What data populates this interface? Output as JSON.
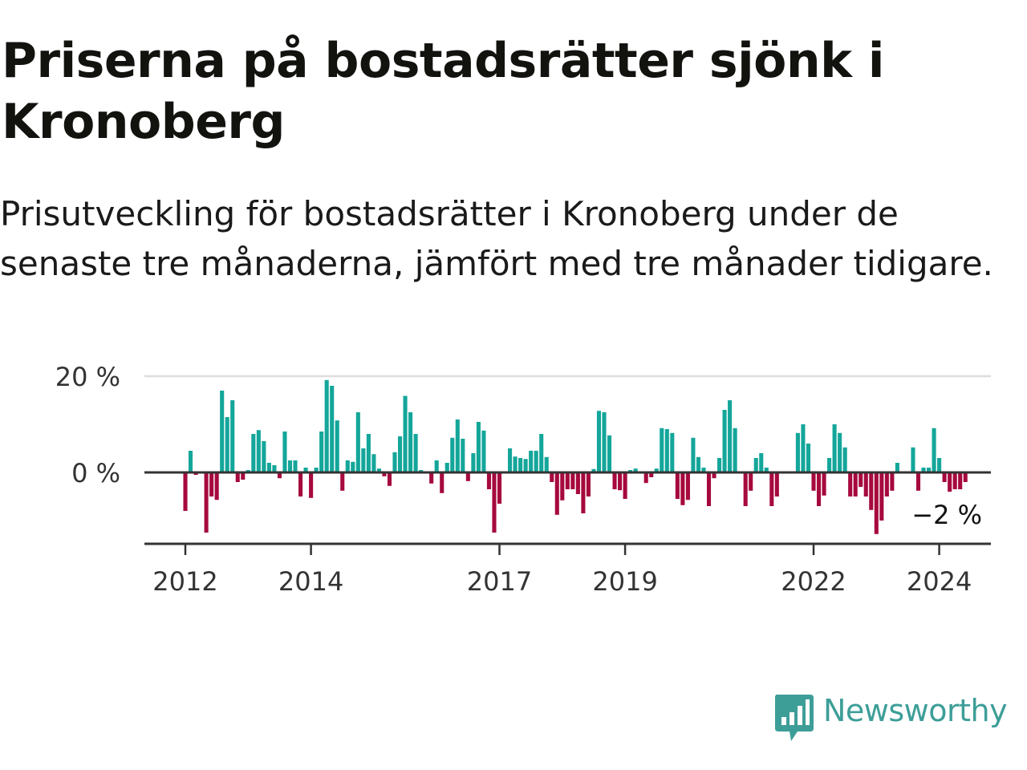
{
  "title": "Priserna på bostadsrätter sjönk i Kronoberg",
  "subtitle": "Prisutveckling för bostadsrätter i Kronoberg under de senaste tre månaderna, jämfört med tre månader tidigare.",
  "brand": {
    "name": "Newsworthy",
    "color": "#3d9e98",
    "icon": "newsworthy-logo-icon"
  },
  "chart_data": {
    "type": "bar",
    "title": "Priserna på bostadsrätter sjönk i Kronoberg",
    "subtitle": "Prisutveckling för bostadsrätter i Kronoberg under de senaste tre månaderna, jämfört med tre månader tidigare.",
    "unit": "%",
    "start": "2012-01",
    "frequency": "monthly",
    "ylim": [
      -15,
      20
    ],
    "yticks": [
      {
        "value": 0,
        "label": "0 %"
      },
      {
        "value": 20,
        "label": "20 %"
      }
    ],
    "xticks": [
      {
        "year": 2012,
        "label": "2012"
      },
      {
        "year": 2014,
        "label": "2014"
      },
      {
        "year": 2017,
        "label": "2017"
      },
      {
        "year": 2019,
        "label": "2019"
      },
      {
        "year": 2022,
        "label": "2022"
      },
      {
        "year": 2024,
        "label": "2024"
      }
    ],
    "colors": {
      "positive": "#14a69a",
      "negative": "#a6093d",
      "grid": "#dddddd",
      "axis": "#333333"
    },
    "grid": true,
    "annotation": {
      "label": "−2 %",
      "value": -2
    },
    "values": [
      -8,
      4.5,
      -0.5,
      0,
      -12.5,
      -5,
      -5.7,
      17,
      11.5,
      15,
      -2,
      -1.5,
      0.5,
      8,
      8.8,
      6.5,
      2,
      1.5,
      -1.2,
      8.5,
      2.5,
      2.5,
      -5,
      1,
      -5.3,
      1,
      8.5,
      19.2,
      18,
      10.8,
      -3.8,
      2.5,
      2.2,
      12.5,
      5,
      8,
      3.8,
      0.8,
      -0.8,
      -2.8,
      4.2,
      7.5,
      15.9,
      12.5,
      8,
      0.5,
      0,
      -2.3,
      2.5,
      -4.3,
      2,
      7.2,
      11,
      7,
      -1.8,
      4,
      10.5,
      8.7,
      -3.5,
      -12.5,
      -6.5,
      0,
      5,
      3.3,
      3,
      2.8,
      4.5,
      4.5,
      8,
      3.2,
      -2,
      -8.8,
      -5.8,
      -3.5,
      -3.5,
      -4.5,
      -8.5,
      -5,
      0.7,
      12.8,
      12.5,
      7.7,
      -3.5,
      -3.7,
      -5.5,
      0.5,
      0.8,
      0,
      -2.2,
      -1,
      0.8,
      9.2,
      9,
      8.2,
      -5.5,
      -6.8,
      -5.7,
      7.2,
      3.2,
      1,
      -7,
      -1.2,
      3,
      13,
      15,
      9.2,
      0,
      -7,
      -3.8,
      3,
      4,
      1,
      -7,
      -5,
      0,
      0,
      0,
      8.2,
      10,
      6,
      -3.8,
      -7,
      -4.8,
      3,
      10,
      8.2,
      5.2,
      -5,
      -5,
      -3,
      -5,
      -7.8,
      -12.8,
      -10,
      -5,
      -3.8,
      2,
      0,
      0,
      5.2,
      -3.8,
      1,
      1,
      9.2,
      3,
      -2,
      -4,
      -3.5,
      -3.5,
      -2
    ]
  }
}
